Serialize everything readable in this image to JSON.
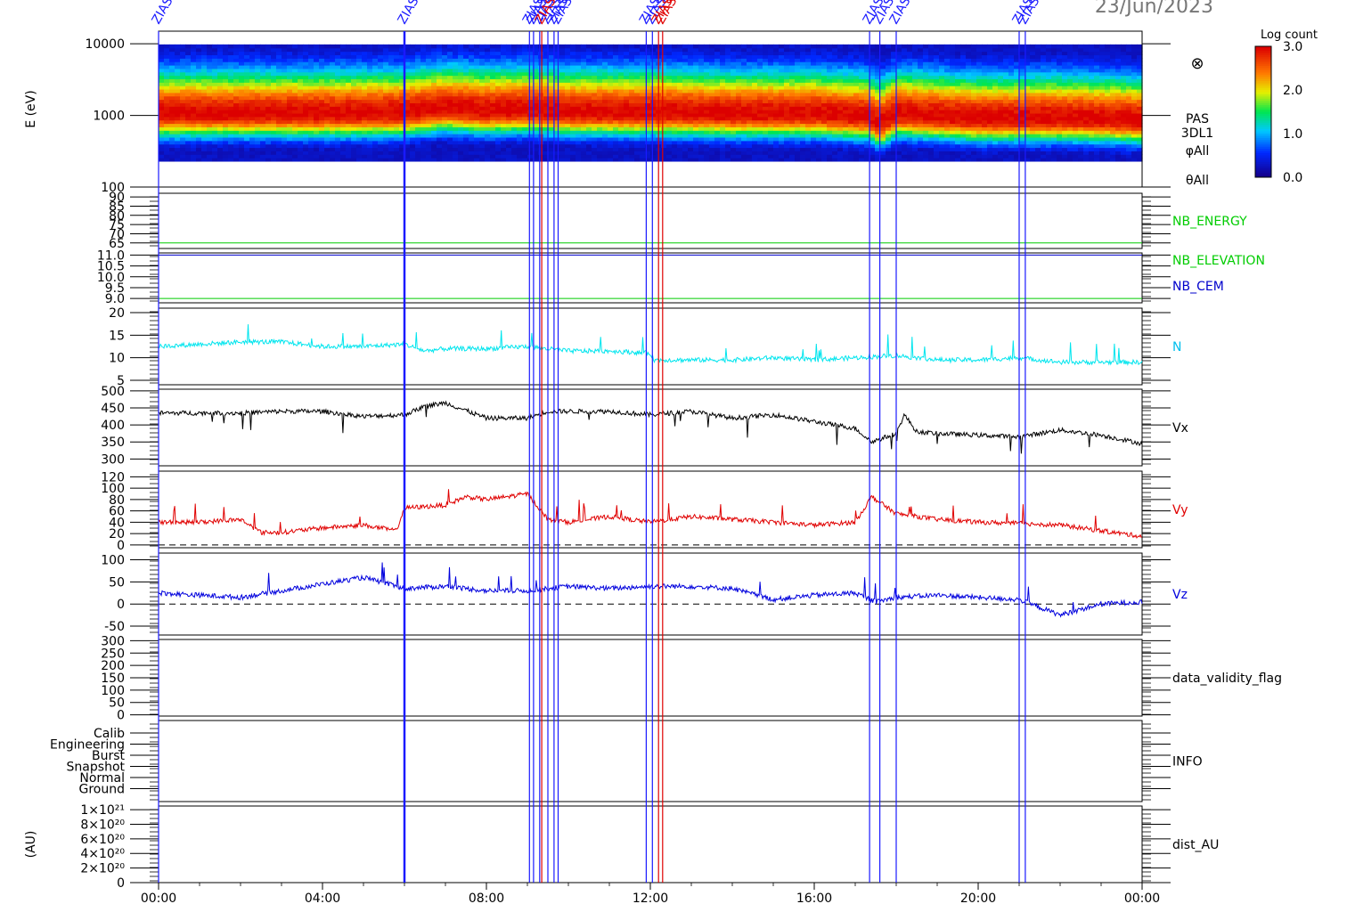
{
  "header": {
    "date": "23/Jun/2023"
  },
  "colorbar": {
    "title": "Log count",
    "ticks": [
      "3.0",
      "2.0",
      "1.0",
      "0.0"
    ],
    "range": [
      0.0,
      3.0
    ]
  },
  "x_axis": {
    "ticks": [
      "00:00",
      "04:00",
      "08:00",
      "12:00",
      "16:00",
      "20:00",
      "00:00"
    ],
    "range_hours": [
      0,
      24
    ]
  },
  "event_markers": {
    "label": "ZIAS",
    "blue_hours": [
      0.0,
      6.0,
      9.05,
      9.15,
      9.3,
      9.5,
      9.65,
      9.75,
      11.9,
      12.05,
      17.35,
      17.6,
      18.0,
      21.0,
      21.15
    ],
    "red_hours": [
      9.35,
      12.2,
      12.3
    ]
  },
  "chart_data": [
    {
      "id": "spectrogram",
      "type": "heatmap",
      "ylabel": "E (eV)",
      "y_ticks": [
        "10000",
        "1000",
        "100"
      ],
      "ylim": [
        100,
        15000
      ],
      "log_y": true,
      "right_labels": [
        "PAS",
        "3DL1",
        "φAll",
        "θAll"
      ],
      "right_symbol": "⊗",
      "x": [
        0,
        2,
        4,
        6,
        7,
        8,
        9,
        10,
        12,
        14,
        16,
        17.3,
        17.6,
        18,
        20,
        22,
        24
      ],
      "peak_energy_ev": [
        1050,
        1050,
        1050,
        1080,
        1250,
        1150,
        1200,
        1100,
        1100,
        1050,
        1050,
        950,
        750,
        1050,
        900,
        920,
        850
      ]
    },
    {
      "id": "nb-energy",
      "type": "line",
      "y_ticks": [
        "90",
        "85",
        "80",
        "75",
        "70",
        "65"
      ],
      "ylim": [
        62,
        92
      ],
      "series": [
        {
          "name": "NB_ENERGY",
          "color": "#00cc00",
          "values": [
            [
              0,
              65
            ],
            [
              24,
              65
            ]
          ]
        }
      ]
    },
    {
      "id": "nb-elevation-cem",
      "type": "line",
      "y_ticks": [
        "11.0",
        "10.5",
        "10.0",
        "9.5",
        "9.0"
      ],
      "ylim": [
        8.8,
        11.1
      ],
      "series": [
        {
          "name": "NB_ELEVATION",
          "color": "#00cc00",
          "values": [
            [
              0,
              9.0
            ],
            [
              24,
              9.0
            ]
          ]
        },
        {
          "name": "NB_CEM",
          "color": "#0000cc",
          "values": [
            [
              0,
              11.0
            ],
            [
              24,
              11.0
            ]
          ]
        }
      ]
    },
    {
      "id": "density",
      "type": "line",
      "y_ticks": [
        "20",
        "15",
        "10",
        "5"
      ],
      "ylim": [
        4,
        21
      ],
      "series": [
        {
          "name": "N",
          "color": "#00e5ee",
          "values": [
            [
              0,
              12.5
            ],
            [
              1,
              13
            ],
            [
              2,
              13.5
            ],
            [
              3,
              13.5
            ],
            [
              4,
              12.5
            ],
            [
              5,
              12.5
            ],
            [
              6,
              13
            ],
            [
              6.5,
              11.5
            ],
            [
              7,
              12
            ],
            [
              8,
              12
            ],
            [
              9,
              12.5
            ],
            [
              10,
              11.5
            ],
            [
              11,
              11.5
            ],
            [
              12,
              11
            ],
            [
              12.1,
              9.5
            ],
            [
              13,
              9.5
            ],
            [
              14,
              9.5
            ],
            [
              15,
              10
            ],
            [
              16,
              9.5
            ],
            [
              17,
              10
            ],
            [
              18,
              10.5
            ],
            [
              19,
              9.5
            ],
            [
              20,
              9.5
            ],
            [
              21,
              10
            ],
            [
              22,
              9
            ],
            [
              23,
              9
            ],
            [
              24,
              9
            ]
          ]
        }
      ]
    },
    {
      "id": "vx",
      "type": "line",
      "y_ticks": [
        "500",
        "450",
        "400",
        "350",
        "300"
      ],
      "ylim": [
        280,
        505
      ],
      "series": [
        {
          "name": "Vx",
          "color": "#000000",
          "values": [
            [
              0,
              435
            ],
            [
              1,
              435
            ],
            [
              2,
              435
            ],
            [
              3,
              440
            ],
            [
              4,
              440
            ],
            [
              5,
              425
            ],
            [
              6,
              430
            ],
            [
              6.5,
              455
            ],
            [
              7,
              465
            ],
            [
              8,
              420
            ],
            [
              9,
              420
            ],
            [
              9.5,
              440
            ],
            [
              10,
              440
            ],
            [
              11,
              440
            ],
            [
              12,
              430
            ],
            [
              13,
              440
            ],
            [
              14,
              420
            ],
            [
              15,
              430
            ],
            [
              16,
              410
            ],
            [
              17,
              390
            ],
            [
              17.4,
              350
            ],
            [
              18,
              375
            ],
            [
              18.2,
              430
            ],
            [
              18.5,
              380
            ],
            [
              19,
              375
            ],
            [
              20,
              370
            ],
            [
              21,
              365
            ],
            [
              22,
              385
            ],
            [
              23,
              370
            ],
            [
              24,
              345
            ]
          ]
        }
      ]
    },
    {
      "id": "vy",
      "type": "line",
      "y_ticks": [
        "120",
        "100",
        "80",
        "60",
        "40",
        "20",
        "0"
      ],
      "ylim": [
        -5,
        130
      ],
      "dashed_zero": true,
      "series": [
        {
          "name": "Vy",
          "color": "#e00000",
          "values": [
            [
              0,
              40
            ],
            [
              1,
              40
            ],
            [
              2,
              45
            ],
            [
              2.5,
              22
            ],
            [
              3,
              22
            ],
            [
              4,
              30
            ],
            [
              5,
              35
            ],
            [
              5.8,
              25
            ],
            [
              6,
              65
            ],
            [
              7,
              70
            ],
            [
              7.5,
              85
            ],
            [
              8,
              80
            ],
            [
              9,
              90
            ],
            [
              9.5,
              45
            ],
            [
              10,
              40
            ],
            [
              11,
              50
            ],
            [
              12,
              40
            ],
            [
              13,
              50
            ],
            [
              14,
              45
            ],
            [
              15,
              40
            ],
            [
              16,
              35
            ],
            [
              17,
              40
            ],
            [
              17.4,
              85
            ],
            [
              18,
              55
            ],
            [
              19,
              45
            ],
            [
              20,
              40
            ],
            [
              21,
              38
            ],
            [
              22,
              35
            ],
            [
              23,
              25
            ],
            [
              24,
              15
            ]
          ]
        }
      ]
    },
    {
      "id": "vz",
      "type": "line",
      "y_ticks": [
        "100",
        "50",
        "0",
        "-50"
      ],
      "ylim": [
        -70,
        115
      ],
      "dashed_zero": true,
      "series": [
        {
          "name": "Vz",
          "color": "#0000dd",
          "values": [
            [
              0,
              25
            ],
            [
              1,
              20
            ],
            [
              2,
              15
            ],
            [
              3,
              30
            ],
            [
              4,
              45
            ],
            [
              5,
              60
            ],
            [
              6,
              35
            ],
            [
              7,
              40
            ],
            [
              8,
              30
            ],
            [
              9,
              30
            ],
            [
              10,
              40
            ],
            [
              11,
              35
            ],
            [
              12,
              40
            ],
            [
              13,
              40
            ],
            [
              14,
              35
            ],
            [
              15,
              10
            ],
            [
              16,
              20
            ],
            [
              17,
              25
            ],
            [
              17.5,
              5
            ],
            [
              18,
              15
            ],
            [
              19,
              20
            ],
            [
              20,
              15
            ],
            [
              21,
              10
            ],
            [
              22,
              -25
            ],
            [
              23,
              0
            ],
            [
              24,
              5
            ]
          ]
        }
      ]
    },
    {
      "id": "validity",
      "type": "line",
      "y_ticks": [
        "300",
        "250",
        "200",
        "150",
        "100",
        "50",
        "0"
      ],
      "ylim": [
        -5,
        305
      ],
      "series": [],
      "right_label": "data_validity_flag"
    },
    {
      "id": "info",
      "type": "line",
      "y_ticks": [
        "Calib",
        "Engineering",
        "Burst",
        "Snapshot",
        "Normal",
        "Ground"
      ],
      "series": [],
      "right_label": "INFO"
    },
    {
      "id": "dist",
      "type": "line",
      "ylabel": "(AU)",
      "y_ticks": [
        "1×10²¹",
        "8×10²⁰",
        "6×10²⁰",
        "4×10²⁰",
        "2×10²⁰",
        "0"
      ],
      "ylim": [
        0,
        1.05
      ],
      "dashed_zero": true,
      "series": [],
      "right_label": "dist_AU"
    }
  ]
}
